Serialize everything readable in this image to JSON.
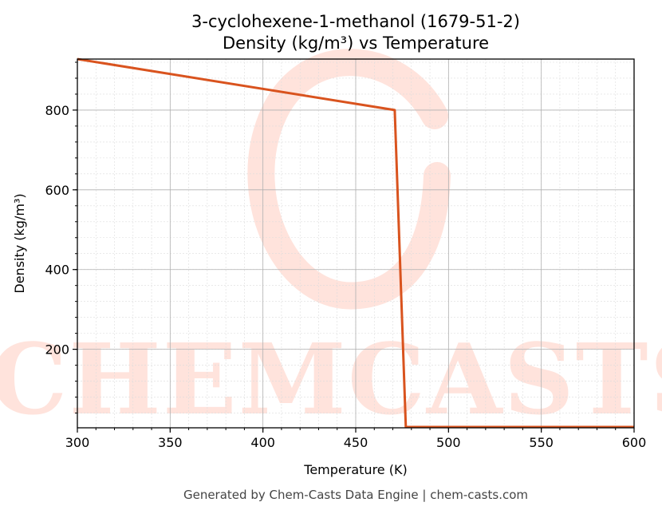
{
  "chart_data": {
    "type": "line",
    "title_line1": "3-cyclohexene-1-methanol (1679-51-2)",
    "title_line2": "Density (kg/m³) vs Temperature",
    "xlabel": "Temperature (K)",
    "ylabel": "Density (kg/m³)",
    "xlim": [
      300,
      600
    ],
    "ylim": [
      3,
      928
    ],
    "xticks": [
      300,
      350,
      400,
      450,
      500,
      550,
      600
    ],
    "yticks": [
      200,
      400,
      600,
      800
    ],
    "grid": true,
    "series": [
      {
        "color": "#d9531e",
        "x": [
          300,
          471,
          477,
          600
        ],
        "y": [
          928,
          800,
          5,
          5
        ]
      }
    ]
  },
  "watermark": {
    "text": "CHEMCASTS",
    "color": "#ffe3dc"
  },
  "footer": "Generated by Chem-Casts Data Engine | chem-casts.com"
}
